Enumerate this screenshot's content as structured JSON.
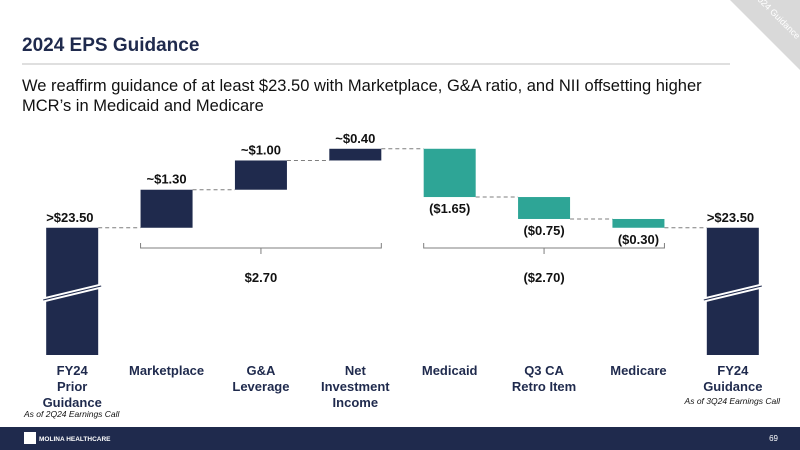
{
  "header": {
    "title": "2024 EPS Guidance",
    "tag": "2024 Guidance",
    "subtitle": "We reaffirm guidance of at least $23.50 with Marketplace, G&A ratio, and NII offsetting higher MCR’s in Medicaid and Medicare"
  },
  "chart_data": {
    "type": "waterfall",
    "categories": [
      [
        "FY24",
        "Prior",
        "Guidance"
      ],
      [
        "Marketplace"
      ],
      [
        "G&A",
        "Leverage"
      ],
      [
        "Net",
        "Investment",
        "Income"
      ],
      [
        "Medicaid"
      ],
      [
        "Q3 CA",
        "Retro Item"
      ],
      [
        "Medicare"
      ],
      [
        "FY24",
        "Guidance"
      ]
    ],
    "measure": [
      "total",
      "relative",
      "relative",
      "relative",
      "relative",
      "relative",
      "relative",
      "total"
    ],
    "values": [
      23.5,
      1.3,
      1.0,
      0.4,
      -1.65,
      -0.75,
      -0.3,
      23.5
    ],
    "value_labels": [
      ">$23.50",
      "~$1.30",
      "~$1.00",
      "~$0.40",
      "($1.65)",
      "($0.75)",
      "($0.30)",
      ">$23.50"
    ],
    "colors": {
      "total": "#1f2a4d",
      "increase": "#1f2a4d",
      "decrease": "#2ea596"
    },
    "ylim": [
      19.15,
      26.5
    ],
    "group_labels": [
      "$2.70",
      "($2.70)"
    ],
    "notes": [
      "As of 2Q24 Earnings Call",
      "As of 3Q24 Earnings Call"
    ]
  },
  "footer": {
    "logo": "MOLINA HEALTHCARE",
    "page": "69"
  }
}
